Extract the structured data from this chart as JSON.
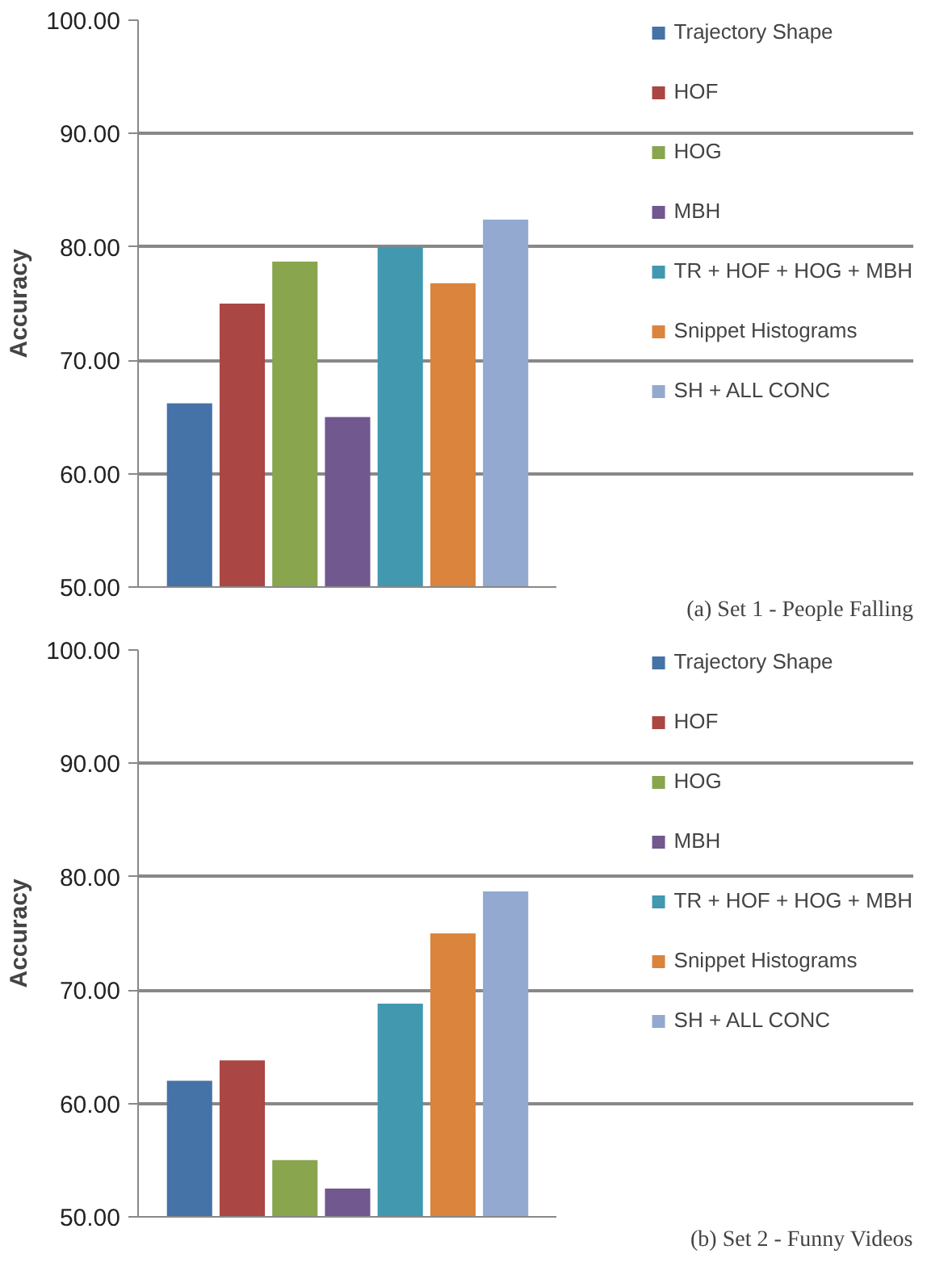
{
  "chart_data": [
    {
      "type": "bar",
      "ylabel": "Accuracy",
      "categories": [
        null
      ],
      "ylim": [
        50,
        100
      ],
      "yticks": [
        {
          "value": 50,
          "label": "50.00"
        },
        {
          "value": 60,
          "label": "60.00"
        },
        {
          "value": 70,
          "label": "70.00"
        },
        {
          "value": 80,
          "label": "80.00"
        },
        {
          "value": 90,
          "label": "90.00"
        },
        {
          "value": 100,
          "label": "100.00"
        }
      ],
      "grid": "y",
      "legend": "right",
      "annotations": [
        "(a) Set 1 - People Falling"
      ],
      "series": [
        {
          "name": "Trajectory Shape",
          "color": "#4572a7",
          "values": [
            66.2
          ]
        },
        {
          "name": "HOF",
          "color": "#aa4643",
          "values": [
            75.0
          ]
        },
        {
          "name": "HOG",
          "color": "#89a54e",
          "values": [
            78.7
          ]
        },
        {
          "name": "MBH",
          "color": "#71588f",
          "values": [
            65.0
          ]
        },
        {
          "name": "TR + HOF + HOG + MBH",
          "color": "#4198af",
          "values": [
            80.0
          ]
        },
        {
          "name": "Snippet Histograms",
          "color": "#db843d",
          "values": [
            76.8
          ]
        },
        {
          "name": "SH + ALL CONC",
          "color": "#93a9cf",
          "values": [
            82.4
          ]
        }
      ]
    },
    {
      "type": "bar",
      "ylabel": "Accuracy",
      "categories": [
        null
      ],
      "ylim": [
        50,
        100
      ],
      "yticks": [
        {
          "value": 50,
          "label": "50.00"
        },
        {
          "value": 60,
          "label": "60.00"
        },
        {
          "value": 70,
          "label": "70.00"
        },
        {
          "value": 80,
          "label": "80.00"
        },
        {
          "value": 90,
          "label": "90.00"
        },
        {
          "value": 100,
          "label": "100.00"
        }
      ],
      "grid": "y",
      "legend": "right",
      "annotations": [
        "(b) Set 2 - Funny Videos"
      ],
      "series": [
        {
          "name": "Trajectory Shape",
          "color": "#4572a7",
          "values": [
            62.0
          ]
        },
        {
          "name": "HOF",
          "color": "#aa4643",
          "values": [
            63.8
          ]
        },
        {
          "name": "HOG",
          "color": "#89a54e",
          "values": [
            55.0
          ]
        },
        {
          "name": "MBH",
          "color": "#71588f",
          "values": [
            52.5
          ]
        },
        {
          "name": "TR + HOF + HOG + MBH",
          "color": "#4198af",
          "values": [
            68.8
          ]
        },
        {
          "name": "Snippet Histograms",
          "color": "#db843d",
          "values": [
            75.0
          ]
        },
        {
          "name": "SH + ALL CONC",
          "color": "#93a9cf",
          "values": [
            78.7
          ]
        }
      ]
    }
  ]
}
